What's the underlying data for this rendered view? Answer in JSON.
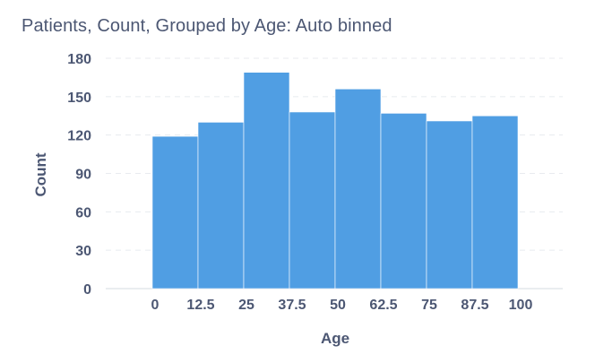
{
  "title": "Patients, Count, Grouped by Age: Auto binned",
  "chart_data": {
    "type": "bar",
    "title": "Patients, Count, Grouped by Age: Auto binned",
    "xlabel": "Age",
    "ylabel": "Count",
    "bin_edges": [
      0,
      12.5,
      25,
      37.5,
      50,
      62.5,
      75,
      87.5,
      100
    ],
    "x_tick_labels": [
      "0",
      "12.5",
      "25",
      "37.5",
      "50",
      "62.5",
      "75",
      "87.5",
      "100"
    ],
    "values": [
      119,
      130,
      169,
      138,
      156,
      137,
      131,
      135
    ],
    "ylim": [
      0,
      180
    ],
    "y_ticks": [
      0,
      30,
      60,
      90,
      120,
      150,
      180
    ],
    "grid": true,
    "bar_color": "#509ee3"
  }
}
